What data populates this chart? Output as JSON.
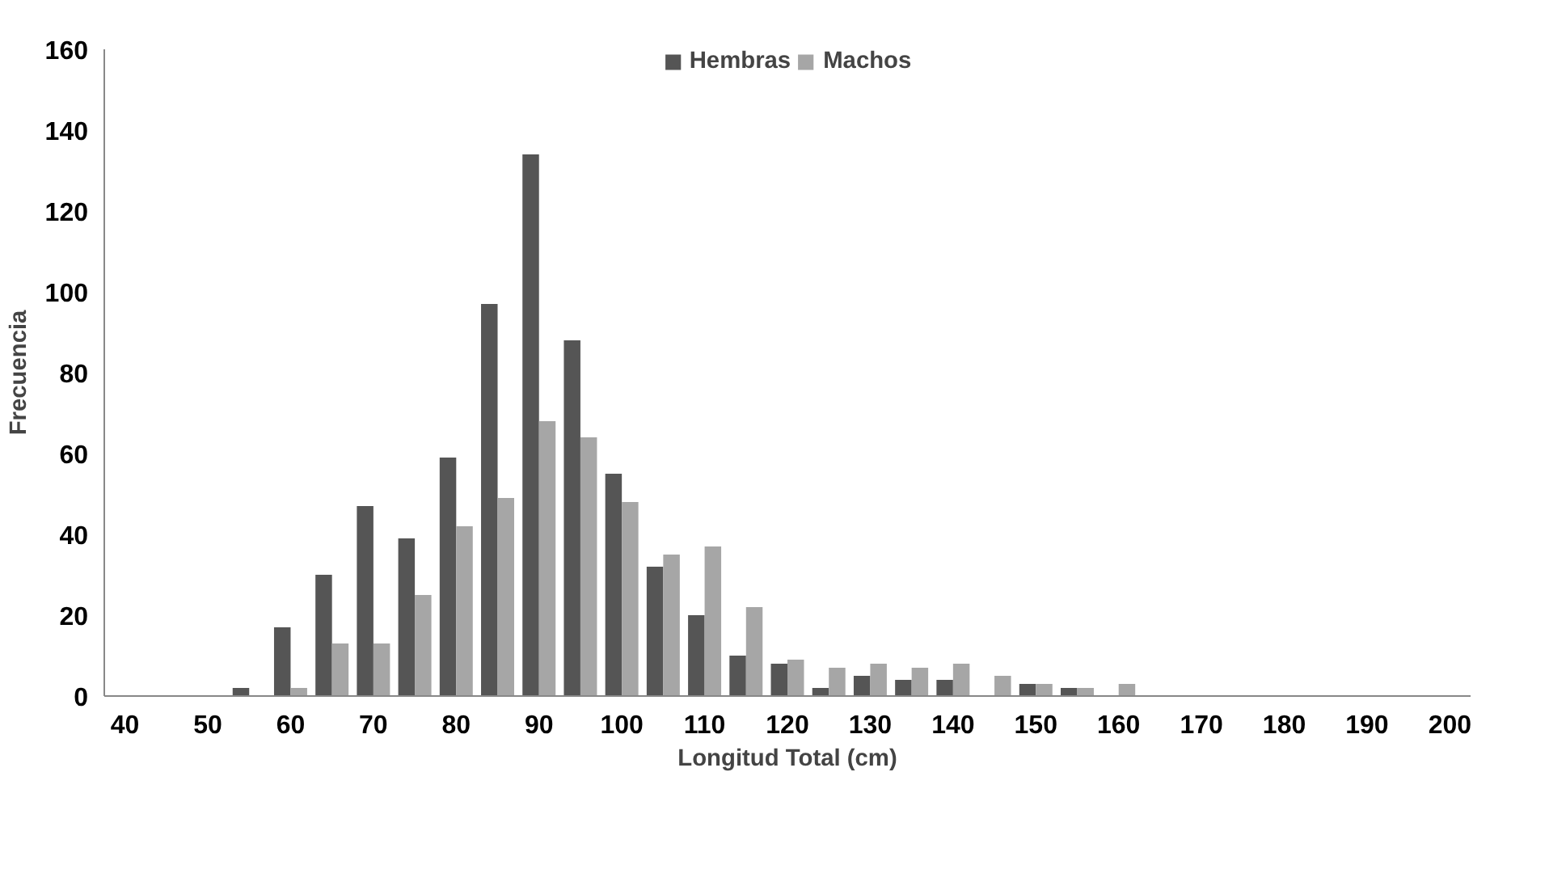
{
  "chart_data": {
    "type": "bar",
    "xlabel": "Longitud Total (cm)",
    "ylabel": "Frecuencia",
    "categories": [
      "40",
      null,
      "50",
      null,
      "60",
      null,
      "70",
      null,
      "80",
      null,
      "90",
      null,
      "100",
      null,
      "110",
      null,
      "120",
      null,
      "130",
      null,
      "140",
      null,
      "150",
      null,
      "160",
      null,
      "170",
      null,
      "180",
      null,
      "190",
      null,
      "200"
    ],
    "series": [
      {
        "name": "Hembras",
        "color": "#555555",
        "values": [
          0,
          0,
          0,
          2,
          17,
          30,
          47,
          39,
          59,
          97,
          134,
          88,
          55,
          32,
          20,
          10,
          8,
          2,
          5,
          4,
          4,
          0,
          3,
          2,
          0,
          0,
          0,
          0,
          0,
          0,
          0,
          0,
          0
        ]
      },
      {
        "name": "Machos",
        "color": "#a6a6a6",
        "values": [
          0,
          0,
          0,
          0,
          2,
          13,
          13,
          25,
          42,
          49,
          68,
          64,
          48,
          35,
          37,
          22,
          9,
          7,
          8,
          7,
          8,
          5,
          3,
          2,
          3,
          0,
          0,
          0,
          0,
          0,
          0,
          0,
          0
        ]
      }
    ],
    "ylim": [
      0,
      160
    ],
    "yticks": [
      0,
      20,
      40,
      60,
      80,
      100,
      120,
      140,
      160
    ],
    "grid": false,
    "legend": "top"
  }
}
